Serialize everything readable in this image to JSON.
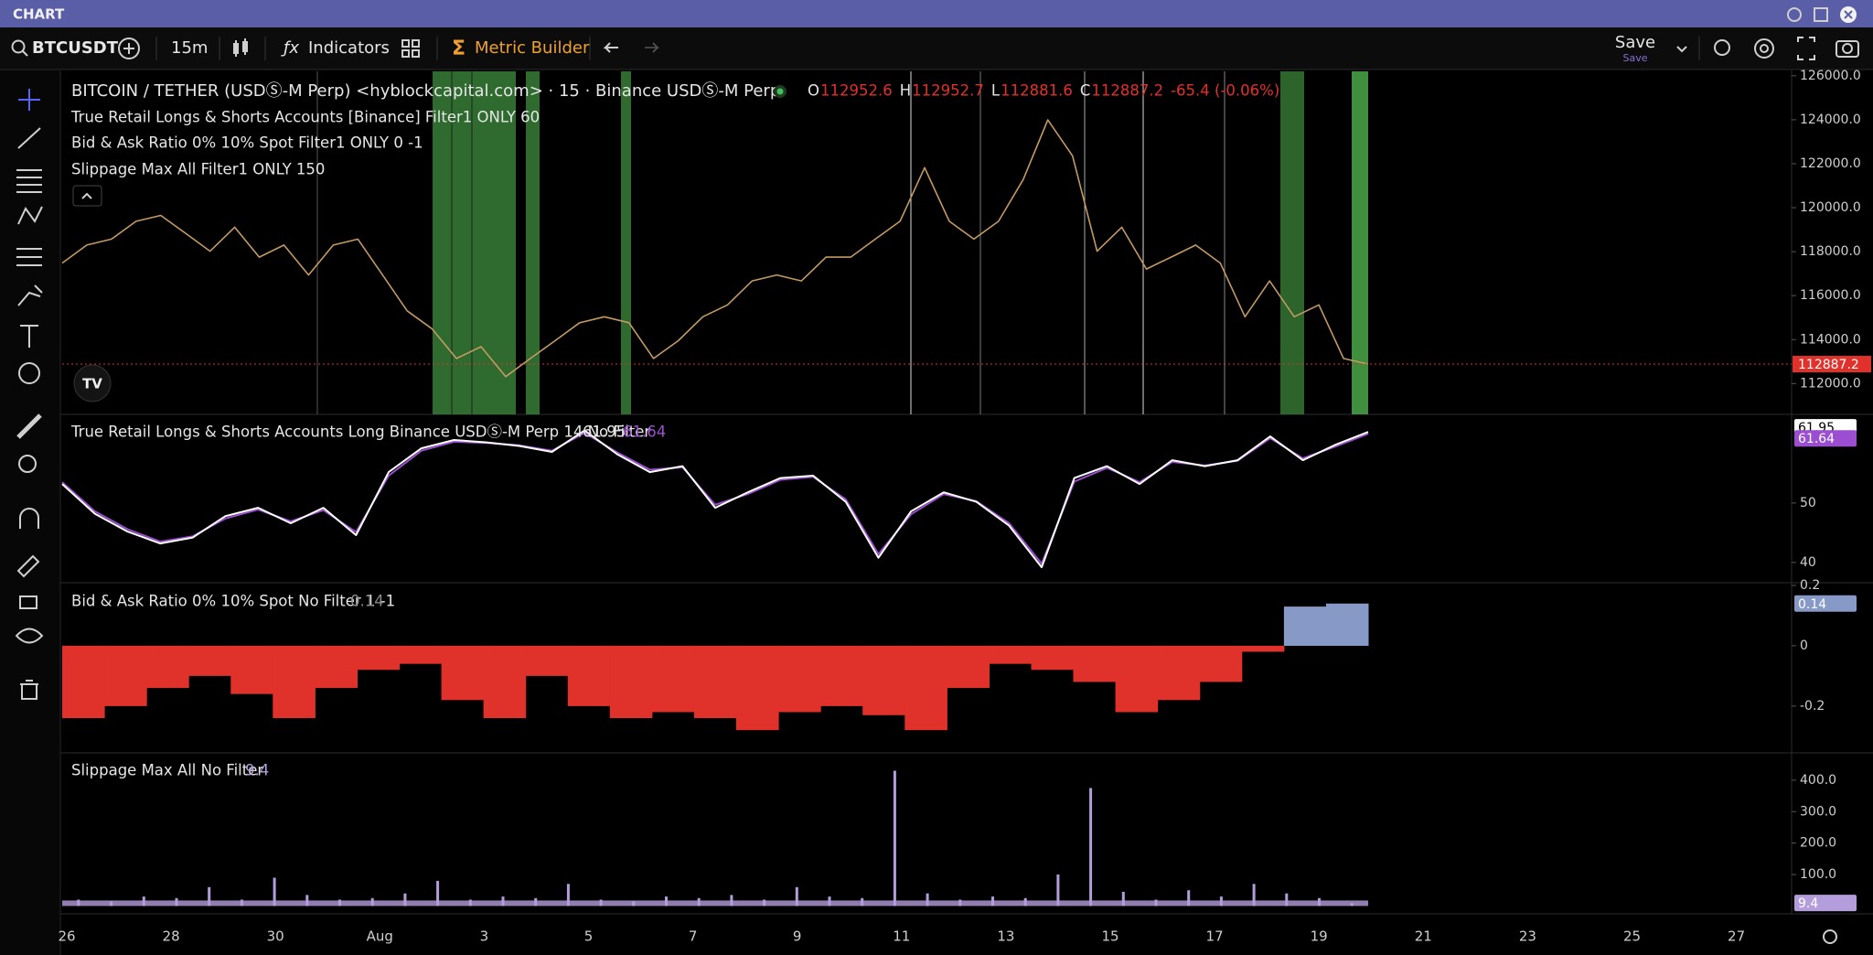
{
  "window": {
    "title": "CHART"
  },
  "toolbar": {
    "symbol": "BTCUSDT",
    "interval": "15m",
    "indicators": "Indicators",
    "metric_builder": "Metric Builder",
    "save": "Save",
    "save_caption": "Save"
  },
  "chart_data": [
    {
      "type": "line",
      "title": "BITCOIN / TETHER (USDⓈ-M Perp) <hyblockcapital.com> · 15 · Binance USDⓈ-M Perp",
      "ohlc": [
        {
          "label": "O",
          "value": "112952.6"
        },
        {
          "label": "H",
          "value": "112952.7"
        },
        {
          "label": "L",
          "value": "112881.6"
        },
        {
          "label": "C",
          "value": "112887.2"
        }
      ],
      "change": "-65.4 (-0.06%)",
      "overlays": [
        "True Retail Longs & Shorts Accounts [Binance] Filter1 ONLY 60",
        "Bid & Ask Ratio 0% 10% Spot Filter1 ONLY 0 -1",
        "Slippage Max All Filter1 ONLY 150"
      ],
      "values": [
        117480,
        118300,
        118570,
        119380,
        119650,
        118840,
        118020,
        119110,
        117750,
        118300,
        116940,
        118300,
        118570,
        116940,
        115310,
        114500,
        113140,
        113680,
        112320,
        113140,
        113950,
        114770,
        115040,
        114770,
        113140,
        113950,
        115040,
        115580,
        116670,
        116940,
        116670,
        117750,
        117750,
        118570,
        119380,
        121820,
        119380,
        118570,
        119380,
        121280,
        123990,
        122360,
        118020,
        119110,
        117210,
        117750,
        118300,
        117480,
        115040,
        116670,
        115040,
        115580,
        113140,
        112887.2
      ],
      "color": "#c49a63",
      "last_color": "#e0312b",
      "ylim": [
        110600,
        126200
      ],
      "yticks": [
        {
          "value": 112000,
          "label": "112000.0"
        },
        {
          "value": 114000,
          "label": "114000.0"
        },
        {
          "value": 116000,
          "label": "116000.0"
        },
        {
          "value": 118000,
          "label": "118000.0"
        },
        {
          "value": 120000,
          "label": "120000.0"
        },
        {
          "value": 122000,
          "label": "122000.0"
        },
        {
          "value": 124000,
          "label": "124000.0"
        },
        {
          "value": 126000,
          "label": "126000.0"
        }
      ]
    },
    {
      "type": "line",
      "title": "True Retail Longs & Shorts Accounts Long Binance USDⓈ-M Perp 14 No Filter",
      "series": [
        {
          "color": "#ffffff",
          "values": [
            53.2,
            48.2,
            45.2,
            43.2,
            44.2,
            47.8,
            49.2,
            46.6,
            49.2,
            44.6,
            55.2,
            59.2,
            60.6,
            60.2,
            59.6,
            58.6,
            62.2,
            58.2,
            55.2,
            56.2,
            49.2,
            51.8,
            54.2,
            54.6,
            50.2,
            40.8,
            48.6,
            51.8,
            50.2,
            46.2,
            39.2,
            54.2,
            56.2,
            53.2,
            57.2,
            56.2,
            57.2,
            61.2,
            57.2,
            59.8,
            61.95
          ]
        },
        {
          "color": "#9b4fd0",
          "values": [
            53.5,
            48.6,
            45.6,
            43.5,
            44.4,
            47.4,
            48.9,
            46.9,
            48.8,
            45.1,
            54.6,
            58.8,
            60.3,
            60.1,
            59.7,
            58.8,
            61.8,
            58.5,
            55.6,
            56.0,
            49.7,
            51.5,
            53.9,
            54.4,
            50.6,
            41.4,
            48.1,
            51.5,
            50.3,
            46.6,
            39.8,
            53.6,
            55.9,
            53.5,
            56.9,
            56.3,
            57.1,
            60.9,
            57.5,
            59.5,
            61.64
          ]
        }
      ],
      "ylim": [
        36.6,
        64.9
      ],
      "yticks": [
        40,
        50
      ]
    },
    {
      "type": "bar",
      "title": "Bid & Ask Ratio 0% 10% Spot No Filter 1 -1",
      "values": [
        -0.24,
        -0.2,
        -0.14,
        -0.1,
        -0.16,
        -0.24,
        -0.14,
        -0.08,
        -0.06,
        -0.18,
        -0.24,
        -0.1,
        -0.2,
        -0.24,
        -0.22,
        -0.24,
        -0.28,
        -0.22,
        -0.2,
        -0.23,
        -0.28,
        -0.14,
        -0.06,
        -0.08,
        -0.12,
        -0.22,
        -0.18,
        -0.12,
        -0.02,
        0.13,
        0.14
      ],
      "color": "#e0312b",
      "positive_color": "#8799c6",
      "ylim": [
        -0.355,
        0.209
      ],
      "yticks": [
        -0.2,
        0,
        0.2
      ]
    },
    {
      "type": "bar",
      "title": "Slippage Max All No Filter",
      "values": [
        20,
        15,
        30,
        25,
        60,
        20,
        90,
        35,
        20,
        25,
        40,
        80,
        20,
        30,
        25,
        70,
        20,
        15,
        30,
        25,
        35,
        20,
        60,
        30,
        25,
        430,
        40,
        20,
        30,
        25,
        100,
        375,
        45,
        20,
        50,
        30,
        70,
        40,
        25,
        9.4
      ],
      "color": "#b39ddb",
      "ylim": [
        -25,
        487
      ],
      "yticks": [
        {
          "value": 100,
          "label": "100.0"
        },
        {
          "value": 200,
          "label": "200.0"
        },
        {
          "value": 300,
          "label": "300.0"
        },
        {
          "value": 400,
          "label": "400.0"
        }
      ]
    }
  ],
  "time_axis": {
    "labels": [
      "26",
      "28",
      "30",
      "Aug",
      "3",
      "5",
      "7",
      "9",
      "11",
      "13",
      "15",
      "17",
      "19",
      "21",
      "23",
      "25",
      "27"
    ]
  }
}
